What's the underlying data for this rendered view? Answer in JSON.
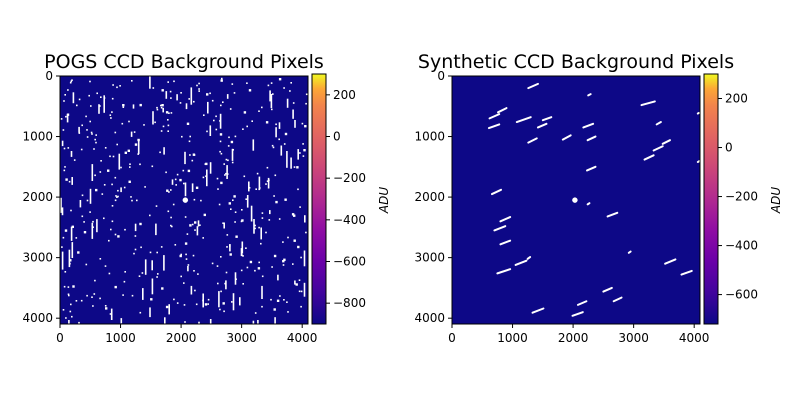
{
  "chart_data": [
    {
      "type": "heatmap",
      "title": "POGS CCD Background Pixels",
      "xlabel": "",
      "ylabel": "",
      "xlim": [
        0,
        4096
      ],
      "ylim": [
        4096,
        0
      ],
      "xticks": [
        "0",
        "1000",
        "2000",
        "3000",
        "4000"
      ],
      "yticks": [
        "0",
        "1000",
        "2000",
        "3000",
        "4000"
      ],
      "x_tick_values": [
        0,
        1000,
        2000,
        3000,
        4000
      ],
      "y_tick_values": [
        0,
        1000,
        2000,
        3000,
        4000
      ],
      "colorbar": {
        "label": "ADU",
        "range": [
          -900,
          300
        ],
        "ticks": [
          "200",
          "0",
          "−200",
          "−400",
          "−600",
          "−800"
        ],
        "tick_values": [
          200,
          0,
          -200,
          -400,
          -600,
          -800
        ],
        "colormap": "plasma"
      },
      "background_color": "#0d0887",
      "source_color": "#ffffff",
      "bright_sources": [
        {
          "x": 2070,
          "y": 2050,
          "r": 45
        }
      ]
    },
    {
      "type": "heatmap",
      "title": "Synthetic CCD Background Pixels",
      "xlabel": "",
      "ylabel": "",
      "xlim": [
        0,
        4096
      ],
      "ylim": [
        4096,
        0
      ],
      "xticks": [
        "0",
        "1000",
        "2000",
        "3000",
        "4000"
      ],
      "yticks": [
        "0",
        "1000",
        "2000",
        "3000",
        "4000"
      ],
      "x_tick_values": [
        0,
        1000,
        2000,
        3000,
        4000
      ],
      "y_tick_values": [
        0,
        1000,
        2000,
        3000,
        4000
      ],
      "colorbar": {
        "label": "ADU",
        "range": [
          -720,
          300
        ],
        "ticks": [
          "200",
          "0",
          "−200",
          "−400",
          "−600"
        ],
        "tick_values": [
          200,
          0,
          -200,
          -400,
          -600
        ],
        "colormap": "plasma"
      },
      "background_color": "#0d0887",
      "source_color": "#ffffff",
      "bright_sources": [
        {
          "x": 2030,
          "y": 2050,
          "r": 45
        }
      ],
      "streaks": [
        {
          "x1": 1260,
          "y1": 200,
          "x2": 1420,
          "y2": 130
        },
        {
          "x1": 610,
          "y1": 860,
          "x2": 780,
          "y2": 800
        },
        {
          "x1": 620,
          "y1": 700,
          "x2": 780,
          "y2": 630
        },
        {
          "x1": 760,
          "y1": 600,
          "x2": 900,
          "y2": 530
        },
        {
          "x1": 1070,
          "y1": 760,
          "x2": 1300,
          "y2": 680
        },
        {
          "x1": 1420,
          "y1": 850,
          "x2": 1560,
          "y2": 790
        },
        {
          "x1": 1500,
          "y1": 730,
          "x2": 1640,
          "y2": 680
        },
        {
          "x1": 1260,
          "y1": 1100,
          "x2": 1400,
          "y2": 1030
        },
        {
          "x1": 1830,
          "y1": 1050,
          "x2": 1960,
          "y2": 980
        },
        {
          "x1": 2170,
          "y1": 850,
          "x2": 2330,
          "y2": 790
        },
        {
          "x1": 2240,
          "y1": 1060,
          "x2": 2370,
          "y2": 1000
        },
        {
          "x1": 2230,
          "y1": 1560,
          "x2": 2370,
          "y2": 1500
        },
        {
          "x1": 2250,
          "y1": 320,
          "x2": 2290,
          "y2": 300
        },
        {
          "x1": 3130,
          "y1": 480,
          "x2": 3350,
          "y2": 420
        },
        {
          "x1": 3380,
          "y1": 800,
          "x2": 3450,
          "y2": 760
        },
        {
          "x1": 3180,
          "y1": 1380,
          "x2": 3330,
          "y2": 1310
        },
        {
          "x1": 3330,
          "y1": 1230,
          "x2": 3480,
          "y2": 1160
        },
        {
          "x1": 3480,
          "y1": 1120,
          "x2": 3600,
          "y2": 1060
        },
        {
          "x1": 4060,
          "y1": 1420,
          "x2": 4096,
          "y2": 1400
        },
        {
          "x1": 4060,
          "y1": 620,
          "x2": 4080,
          "y2": 610
        },
        {
          "x1": 660,
          "y1": 1950,
          "x2": 810,
          "y2": 1880
        },
        {
          "x1": 800,
          "y1": 2400,
          "x2": 960,
          "y2": 2330
        },
        {
          "x1": 700,
          "y1": 2550,
          "x2": 880,
          "y2": 2480
        },
        {
          "x1": 800,
          "y1": 2780,
          "x2": 960,
          "y2": 2720
        },
        {
          "x1": 2570,
          "y1": 2320,
          "x2": 2730,
          "y2": 2260
        },
        {
          "x1": 2240,
          "y1": 2120,
          "x2": 2270,
          "y2": 2100
        },
        {
          "x1": 1050,
          "y1": 3120,
          "x2": 1230,
          "y2": 3050
        },
        {
          "x1": 750,
          "y1": 3260,
          "x2": 960,
          "y2": 3190
        },
        {
          "x1": 1250,
          "y1": 3020,
          "x2": 1290,
          "y2": 2990
        },
        {
          "x1": 2500,
          "y1": 3560,
          "x2": 2640,
          "y2": 3500
        },
        {
          "x1": 2670,
          "y1": 3720,
          "x2": 2800,
          "y2": 3660
        },
        {
          "x1": 1330,
          "y1": 3910,
          "x2": 1510,
          "y2": 3840
        },
        {
          "x1": 1990,
          "y1": 3960,
          "x2": 2160,
          "y2": 3900
        },
        {
          "x1": 2080,
          "y1": 3780,
          "x2": 2220,
          "y2": 3720
        },
        {
          "x1": 3520,
          "y1": 3100,
          "x2": 3690,
          "y2": 3030
        },
        {
          "x1": 3790,
          "y1": 3280,
          "x2": 3960,
          "y2": 3220
        },
        {
          "x1": 2920,
          "y1": 2920,
          "x2": 2950,
          "y2": 2900
        }
      ]
    }
  ]
}
